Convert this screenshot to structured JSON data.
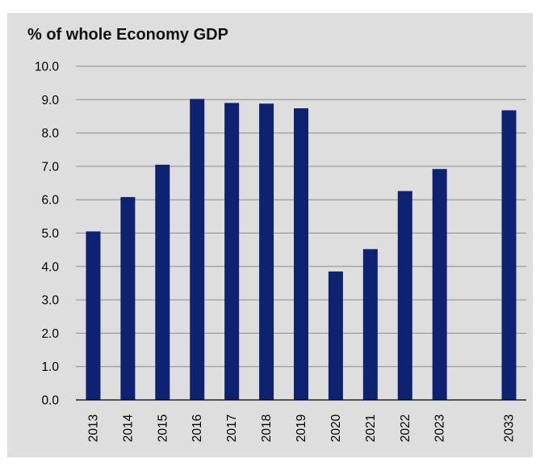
{
  "chart_data": {
    "type": "bar",
    "title": "% of whole Economy GDP",
    "xlabel": "",
    "ylabel": "",
    "categories": [
      "2013",
      "2014",
      "2015",
      "2016",
      "2017",
      "2018",
      "2019",
      "2020",
      "2021",
      "2022",
      "2023",
      "",
      "2033"
    ],
    "values": [
      5.05,
      6.08,
      7.05,
      9.02,
      8.9,
      8.88,
      8.74,
      3.85,
      4.52,
      6.26,
      6.92,
      null,
      8.68
    ],
    "ylim": [
      0,
      10
    ],
    "yticks": [
      "0.0",
      "1.0",
      "2.0",
      "3.0",
      "4.0",
      "5.0",
      "6.0",
      "7.0",
      "8.0",
      "9.0",
      "10.0"
    ],
    "grid": true,
    "bar_color": "#0d2270",
    "background_color": "#dedede"
  }
}
